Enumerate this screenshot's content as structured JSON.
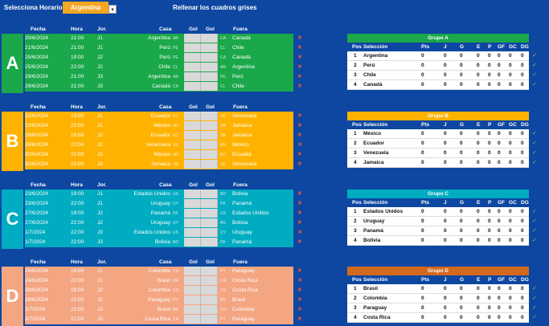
{
  "header": {
    "label": "Selecciona Horario:",
    "selected": "Argentina",
    "dropdown_icon": "▾",
    "hint": "Rellenar los cuadros grises"
  },
  "col_headers": {
    "fecha": "Fecha",
    "hora": "Hora",
    "jor": "Jor.",
    "casa": "Casa",
    "gol1": "Gol",
    "gol2": "Gol",
    "fuera": "Fuera"
  },
  "table_headers": {
    "pos": "Pos",
    "sel": "Selección",
    "pts": "Pts",
    "j": "J",
    "g": "G",
    "e": "E",
    "p": "P",
    "gf": "GF",
    "gc": "GC",
    "dg": "DG"
  },
  "icons": {
    "delete": "✕",
    "check": "✓"
  },
  "colors": {
    "bg": "#0d47a1",
    "delete": "#ff5a36",
    "check": "#8bc34a",
    "gol_box": "#d9d9d9"
  },
  "groups": [
    {
      "letter": "A",
      "color": "#1aa84a",
      "title": "Grupo A",
      "matches": [
        {
          "fecha": "20/6/2024",
          "hora": "21:00",
          "jor": "J1",
          "casa": "Argentina",
          "casa_code": "AR",
          "fuera": "Canadá",
          "fuera_code": "CA"
        },
        {
          "fecha": "21/6/2024",
          "hora": "21:00",
          "jor": "J1",
          "casa": "Perú",
          "casa_code": "PE",
          "fuera": "Chile",
          "fuera_code": "CL"
        },
        {
          "fecha": "25/6/2024",
          "hora": "19:00",
          "jor": "J2",
          "casa": "Perú",
          "casa_code": "PE",
          "fuera": "Canadá",
          "fuera_code": "CA"
        },
        {
          "fecha": "25/6/2024",
          "hora": "22:00",
          "jor": "J2",
          "casa": "Chile",
          "casa_code": "CL",
          "fuera": "Argentina",
          "fuera_code": "AR"
        },
        {
          "fecha": "29/6/2024",
          "hora": "21:00",
          "jor": "J3",
          "casa": "Argentina",
          "casa_code": "AR",
          "fuera": "Perú",
          "fuera_code": "PE"
        },
        {
          "fecha": "29/6/2024",
          "hora": "21:00",
          "jor": "J3",
          "casa": "Canadá",
          "casa_code": "CA",
          "fuera": "Chile",
          "fuera_code": "CL"
        }
      ],
      "standings": [
        {
          "pos": "1",
          "sel": "Argentina",
          "pts": "0",
          "j": "0",
          "g": "0",
          "e": "0",
          "p": "0",
          "gf": "0",
          "gc": "0",
          "dg": "0"
        },
        {
          "pos": "2",
          "sel": "Perú",
          "pts": "0",
          "j": "0",
          "g": "0",
          "e": "0",
          "p": "0",
          "gf": "0",
          "gc": "0",
          "dg": "0"
        },
        {
          "pos": "3",
          "sel": "Chile",
          "pts": "0",
          "j": "0",
          "g": "0",
          "e": "0",
          "p": "0",
          "gf": "0",
          "gc": "0",
          "dg": "0"
        },
        {
          "pos": "4",
          "sel": "Canadá",
          "pts": "0",
          "j": "0",
          "g": "0",
          "e": "0",
          "p": "0",
          "gf": "0",
          "gc": "0",
          "dg": "0"
        }
      ]
    },
    {
      "letter": "B",
      "color": "#ffb300",
      "title": "Grupo B",
      "matches": [
        {
          "fecha": "22/6/2024",
          "hora": "19:00",
          "jor": "J1",
          "casa": "Ecuador",
          "casa_code": "EC",
          "fuera": "Venezuela",
          "fuera_code": "VE"
        },
        {
          "fecha": "22/6/2024",
          "hora": "22:00",
          "jor": "J1",
          "casa": "México",
          "casa_code": "MX",
          "fuera": "Jamaica",
          "fuera_code": "JM"
        },
        {
          "fecha": "26/6/2024",
          "hora": "19:00",
          "jor": "J2",
          "casa": "Ecuador",
          "casa_code": "EC",
          "fuera": "Jamaica",
          "fuera_code": "JM"
        },
        {
          "fecha": "26/6/2024",
          "hora": "22:00",
          "jor": "J2",
          "casa": "Venezuela",
          "casa_code": "VE",
          "fuera": "México",
          "fuera_code": "MX"
        },
        {
          "fecha": "30/6/2024",
          "hora": "22:00",
          "jor": "J3",
          "casa": "México",
          "casa_code": "MX",
          "fuera": "Ecuador",
          "fuera_code": "EC"
        },
        {
          "fecha": "30/6/2024",
          "hora": "22:00",
          "jor": "J3",
          "casa": "Jamaica",
          "casa_code": "JM",
          "fuera": "Venezuela",
          "fuera_code": "VE"
        }
      ],
      "standings": [
        {
          "pos": "1",
          "sel": "México",
          "pts": "0",
          "j": "0",
          "g": "0",
          "e": "0",
          "p": "0",
          "gf": "0",
          "gc": "0",
          "dg": "0"
        },
        {
          "pos": "2",
          "sel": "Ecuador",
          "pts": "0",
          "j": "0",
          "g": "0",
          "e": "0",
          "p": "0",
          "gf": "0",
          "gc": "0",
          "dg": "0"
        },
        {
          "pos": "3",
          "sel": "Venezuela",
          "pts": "0",
          "j": "0",
          "g": "0",
          "e": "0",
          "p": "0",
          "gf": "0",
          "gc": "0",
          "dg": "0"
        },
        {
          "pos": "4",
          "sel": "Jamaica",
          "pts": "0",
          "j": "0",
          "g": "0",
          "e": "0",
          "p": "0",
          "gf": "0",
          "gc": "0",
          "dg": "0"
        }
      ]
    },
    {
      "letter": "C",
      "color": "#00acc1",
      "title": "Grupo C",
      "matches": [
        {
          "fecha": "23/6/2024",
          "hora": "19:00",
          "jor": "J1",
          "casa": "Estados Unidos",
          "casa_code": "US",
          "fuera": "Bolivia",
          "fuera_code": "BO"
        },
        {
          "fecha": "23/6/2024",
          "hora": "22:00",
          "jor": "J1",
          "casa": "Uruguay",
          "casa_code": "UY",
          "fuera": "Panamá",
          "fuera_code": "PA"
        },
        {
          "fecha": "27/6/2024",
          "hora": "19:00",
          "jor": "J2",
          "casa": "Panamá",
          "casa_code": "PA",
          "fuera": "Estados Unidos",
          "fuera_code": "US"
        },
        {
          "fecha": "27/6/2024",
          "hora": "22:00",
          "jor": "J2",
          "casa": "Uruguay",
          "casa_code": "UY",
          "fuera": "Bolivia",
          "fuera_code": "BO"
        },
        {
          "fecha": "1/7/2024",
          "hora": "22:00",
          "jor": "J3",
          "casa": "Estados Unidos",
          "casa_code": "US",
          "fuera": "Uruguay",
          "fuera_code": "UY"
        },
        {
          "fecha": "1/7/2024",
          "hora": "22:00",
          "jor": "J3",
          "casa": "Bolivia",
          "casa_code": "BO",
          "fuera": "Panamá",
          "fuera_code": "PA"
        }
      ],
      "standings": [
        {
          "pos": "1",
          "sel": "Estados Unidos",
          "pts": "0",
          "j": "0",
          "g": "0",
          "e": "0",
          "p": "0",
          "gf": "0",
          "gc": "0",
          "dg": "0"
        },
        {
          "pos": "2",
          "sel": "Uruguay",
          "pts": "0",
          "j": "0",
          "g": "0",
          "e": "0",
          "p": "0",
          "gf": "0",
          "gc": "0",
          "dg": "0"
        },
        {
          "pos": "3",
          "sel": "Panamá",
          "pts": "0",
          "j": "0",
          "g": "0",
          "e": "0",
          "p": "0",
          "gf": "0",
          "gc": "0",
          "dg": "0"
        },
        {
          "pos": "4",
          "sel": "Bolivia",
          "pts": "0",
          "j": "0",
          "g": "0",
          "e": "0",
          "p": "0",
          "gf": "0",
          "gc": "0",
          "dg": "0"
        }
      ]
    },
    {
      "letter": "D",
      "color": "#f4a582",
      "title": "Grupo D",
      "title_color": "#d2691e",
      "matches": [
        {
          "fecha": "24/6/2024",
          "hora": "19:00",
          "jor": "J1",
          "casa": "Colombia",
          "casa_code": "CO",
          "fuera": "Paraguay",
          "fuera_code": "PY"
        },
        {
          "fecha": "24/6/2024",
          "hora": "22:00",
          "jor": "J1",
          "casa": "Brasil",
          "casa_code": "BR",
          "fuera": "Costa Rica",
          "fuera_code": "CR"
        },
        {
          "fecha": "28/6/2024",
          "hora": "19:00",
          "jor": "J2",
          "casa": "Colombia",
          "casa_code": "CO",
          "fuera": "Costa Rica",
          "fuera_code": "CR"
        },
        {
          "fecha": "28/6/2024",
          "hora": "22:00",
          "jor": "J2",
          "casa": "Paraguay",
          "casa_code": "PY",
          "fuera": "Brasil",
          "fuera_code": "BR"
        },
        {
          "fecha": "2/7/2024",
          "hora": "22:00",
          "jor": "J3",
          "casa": "Brasil",
          "casa_code": "BR",
          "fuera": "Colombia",
          "fuera_code": "CO"
        },
        {
          "fecha": "2/7/2024",
          "hora": "22:00",
          "jor": "J3",
          "casa": "Costa Rica",
          "casa_code": "CR",
          "fuera": "Paraguay",
          "fuera_code": "PY"
        }
      ],
      "standings": [
        {
          "pos": "1",
          "sel": "Brasil",
          "pts": "0",
          "j": "0",
          "g": "0",
          "e": "0",
          "p": "0",
          "gf": "0",
          "gc": "0",
          "dg": "0"
        },
        {
          "pos": "2",
          "sel": "Colombia",
          "pts": "0",
          "j": "0",
          "g": "0",
          "e": "0",
          "p": "0",
          "gf": "0",
          "gc": "0",
          "dg": "0"
        },
        {
          "pos": "3",
          "sel": "Paraguay",
          "pts": "0",
          "j": "0",
          "g": "0",
          "e": "0",
          "p": "0",
          "gf": "0",
          "gc": "0",
          "dg": "0"
        },
        {
          "pos": "4",
          "sel": "Costa Rica",
          "pts": "0",
          "j": "0",
          "g": "0",
          "e": "0",
          "p": "0",
          "gf": "0",
          "gc": "0",
          "dg": "0"
        }
      ]
    }
  ]
}
